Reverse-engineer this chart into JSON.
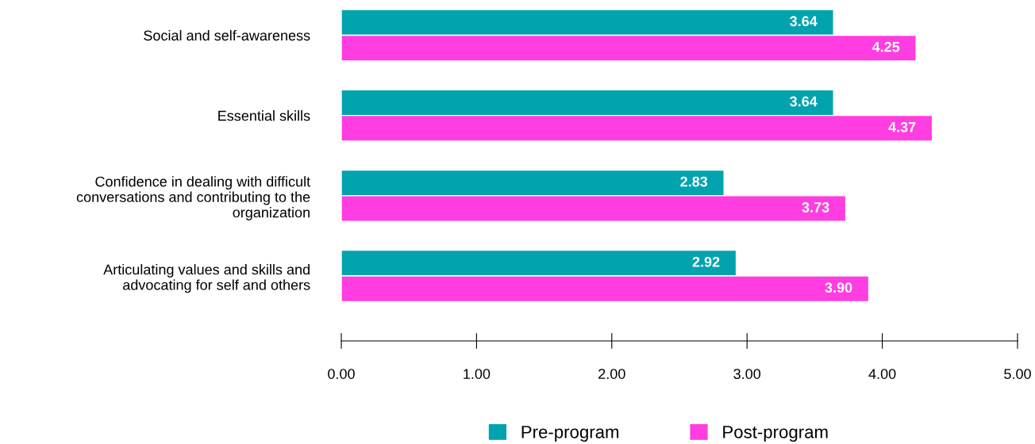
{
  "chart_data": {
    "type": "bar",
    "orientation": "horizontal",
    "categories": [
      "Social and self-awareness",
      "Essential skills",
      "Confidence in dealing with difficult\nconversations and contributing to the\norganization",
      "Articulating values and skills and\nadvocating for self and others"
    ],
    "series": [
      {
        "name": "Pre-program",
        "color": "#00a3ae",
        "values": [
          3.64,
          3.64,
          2.83,
          2.92
        ],
        "value_labels": [
          "3.64",
          "3.64",
          "2.83",
          "2.92"
        ]
      },
      {
        "name": "Post-program",
        "color": "#ff3de0",
        "values": [
          4.25,
          4.37,
          3.73,
          3.9
        ],
        "value_labels": [
          "4.25",
          "4.37",
          "3.73",
          "3.90"
        ]
      }
    ],
    "xlim": [
      0,
      5
    ],
    "xticks": [
      {
        "value": 0,
        "label": "0.00"
      },
      {
        "value": 1,
        "label": "1.00"
      },
      {
        "value": 2,
        "label": "2.00"
      },
      {
        "value": 3,
        "label": "3.00"
      },
      {
        "value": 4,
        "label": "4.00"
      },
      {
        "value": 5,
        "label": "5.00"
      }
    ],
    "grid": false,
    "legend": "bottom"
  }
}
